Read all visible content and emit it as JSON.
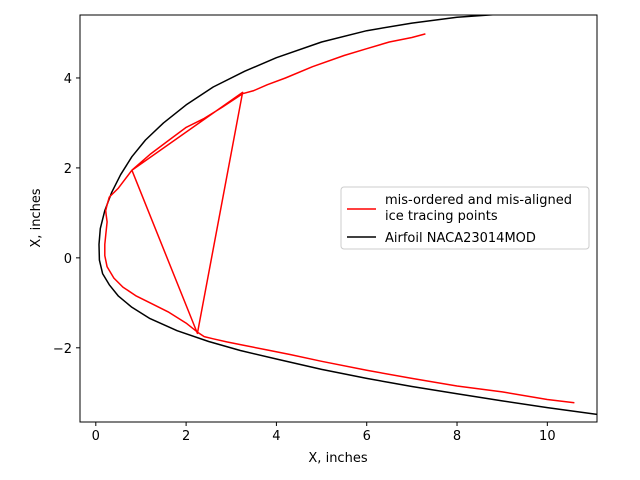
{
  "chart_data": {
    "type": "line",
    "xlabel": "X, inches",
    "ylabel": "X, inches",
    "xlim": [
      -0.35,
      11.1
    ],
    "ylim": [
      -3.65,
      5.4
    ],
    "xticks": [
      0,
      2,
      4,
      6,
      8,
      10
    ],
    "yticks": [
      -2,
      0,
      2,
      4
    ],
    "grid": false,
    "legend": {
      "placement": "center-right",
      "entries": [
        {
          "label_lines": [
            "mis-ordered and mis-aligned",
            "ice tracing points"
          ],
          "color": "#ff0000"
        },
        {
          "label_lines": [
            "Airfoil NACA23014MOD"
          ],
          "color": "#000000"
        }
      ]
    },
    "series": [
      {
        "name": "Airfoil NACA23014MOD",
        "color": "#000000",
        "x": [
          11.1,
          10.0,
          9.0,
          8.0,
          7.0,
          6.0,
          5.0,
          4.0,
          3.2,
          2.5,
          1.8,
          1.2,
          0.8,
          0.5,
          0.3,
          0.15,
          0.08,
          0.07,
          0.1,
          0.2,
          0.35,
          0.55,
          0.8,
          1.1,
          1.5,
          2.0,
          2.6,
          3.3,
          4.0,
          5.0,
          6.0,
          7.0,
          8.0,
          9.0,
          10.0,
          11.1
        ],
        "y": [
          -3.48,
          -3.33,
          -3.18,
          -3.02,
          -2.86,
          -2.68,
          -2.48,
          -2.25,
          -2.06,
          -1.86,
          -1.62,
          -1.35,
          -1.1,
          -0.85,
          -0.6,
          -0.35,
          -0.05,
          0.3,
          0.65,
          1.05,
          1.45,
          1.85,
          2.25,
          2.62,
          3.0,
          3.4,
          3.8,
          4.15,
          4.45,
          4.8,
          5.05,
          5.22,
          5.35,
          5.42,
          5.5,
          5.55
        ]
      },
      {
        "name": "mis-ordered and mis-aligned ice tracing points",
        "color": "#ff0000",
        "x": [
          10.6,
          10.0,
          9.0,
          8.0,
          7.0,
          6.0,
          5.0,
          4.3,
          3.8,
          3.3,
          2.9,
          2.6,
          2.4,
          2.25,
          2.0,
          1.6,
          1.2,
          0.9,
          0.6,
          0.4,
          0.25,
          0.2,
          0.2,
          0.22,
          0.25,
          0.23,
          0.22,
          0.25,
          0.3,
          0.5,
          0.8,
          2.25,
          3.25,
          0.8,
          1.2,
          1.6,
          2.0,
          2.4,
          2.8,
          3.1,
          3.25,
          3.5,
          3.8,
          4.2,
          4.8,
          5.5,
          6.0,
          6.5,
          7.0,
          7.3
        ],
        "y": [
          -3.22,
          -3.15,
          -2.98,
          -2.85,
          -2.68,
          -2.5,
          -2.3,
          -2.15,
          -2.05,
          -1.95,
          -1.87,
          -1.8,
          -1.75,
          -1.65,
          -1.45,
          -1.2,
          -1.0,
          -0.85,
          -0.65,
          -0.45,
          -0.2,
          0.05,
          0.3,
          0.5,
          0.8,
          0.95,
          1.05,
          1.18,
          1.35,
          1.55,
          1.95,
          -1.68,
          3.68,
          1.95,
          2.3,
          2.6,
          2.9,
          3.1,
          3.35,
          3.55,
          3.65,
          3.72,
          3.85,
          4.0,
          4.25,
          4.5,
          4.65,
          4.8,
          4.9,
          4.98
        ]
      }
    ]
  }
}
